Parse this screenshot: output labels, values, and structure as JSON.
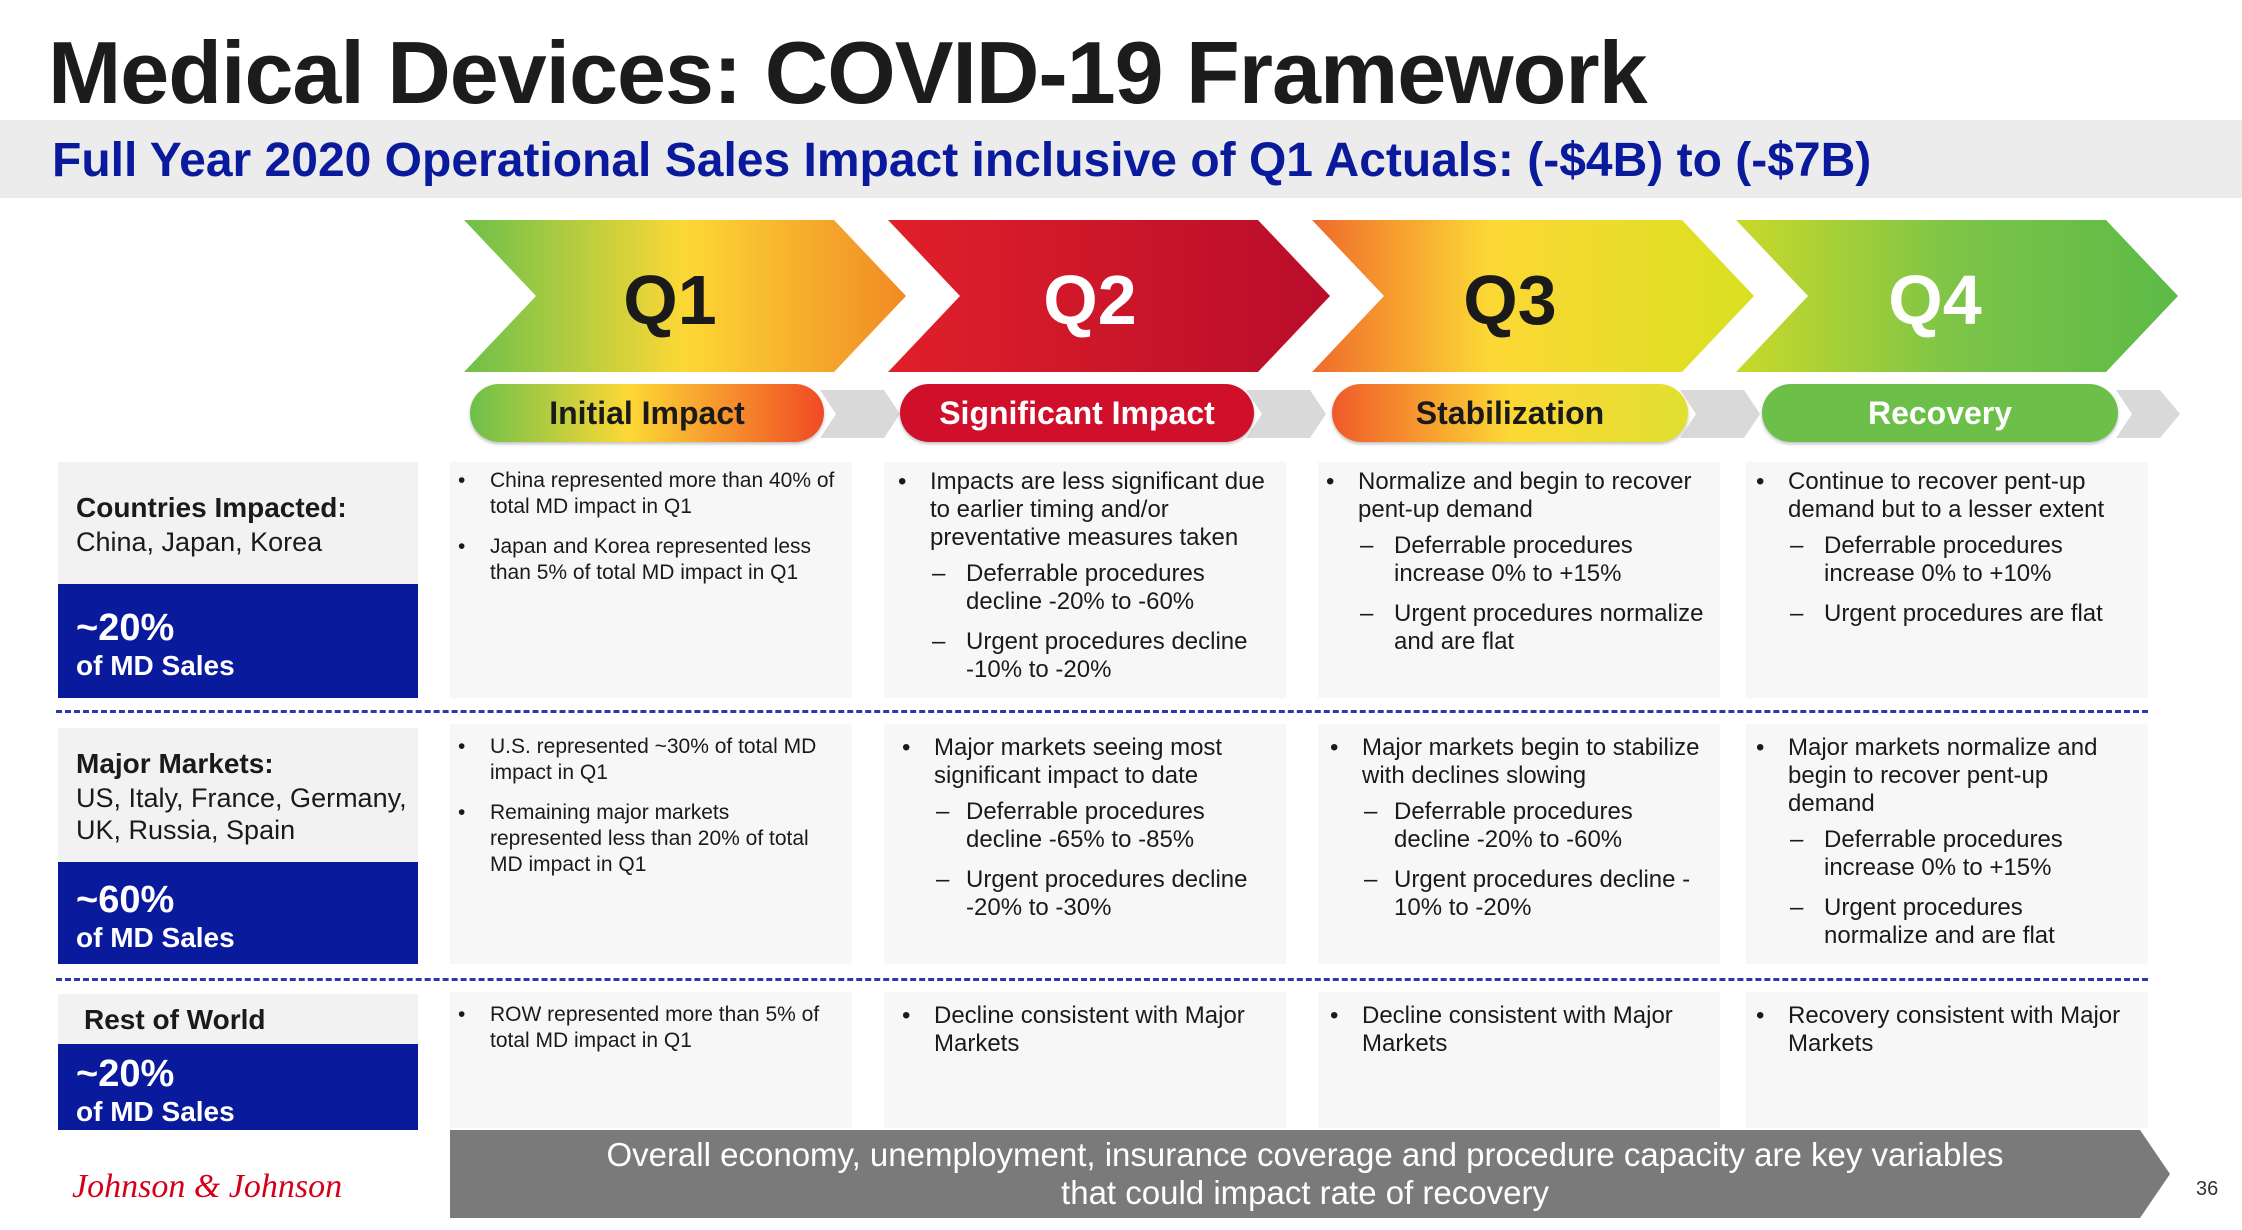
{
  "title": "Medical Devices: COVID-19 Framework",
  "subtitle": "Full Year 2020 Operational Sales Impact inclusive of Q1 Actuals: (-$4B) to (-$7B)",
  "quarters": [
    {
      "label": "Q1",
      "phase": "Initial Impact"
    },
    {
      "label": "Q2",
      "phase": "Significant Impact"
    },
    {
      "label": "Q3",
      "phase": "Stabilization"
    },
    {
      "label": "Q4",
      "phase": "Recovery"
    }
  ],
  "colors": {
    "brand_blue": "#0a1a9c",
    "red": "#c8102e",
    "green": "#6cc04a",
    "yellow": "#fdd835",
    "orange": "#f08a24",
    "footer_gray": "#7a7a7a",
    "jnj_red": "#d4001a"
  },
  "regions": [
    {
      "title": "Countries Impacted:",
      "sub_lines": [
        "China, Japan, Korea"
      ],
      "pct": "~20%",
      "pct_label": "of MD Sales",
      "q1": {
        "bullets": [
          {
            "text": "China represented more than 40% of total MD impact in Q1"
          },
          {
            "text": "Japan and Korea represented less than 5% of total MD impact in Q1"
          }
        ]
      },
      "q2": {
        "bullets": [
          {
            "text": "Impacts are less significant due to earlier timing and/or preventative measures taken",
            "subs": [
              "Deferrable procedures decline -20% to -60%",
              "Urgent procedures decline -10% to -20%"
            ]
          }
        ]
      },
      "q3": {
        "bullets": [
          {
            "text": "Normalize and begin to recover pent-up demand",
            "subs": [
              "Deferrable procedures increase 0% to +15%",
              "Urgent procedures normalize and are flat"
            ]
          }
        ]
      },
      "q4": {
        "bullets": [
          {
            "text": "Continue to recover pent-up demand but to a lesser extent",
            "subs": [
              "Deferrable procedures increase 0% to +10%",
              "Urgent procedures are flat"
            ]
          }
        ]
      }
    },
    {
      "title": "Major Markets:",
      "sub_lines": [
        "US, Italy, France, Germany,",
        "UK, Russia, Spain"
      ],
      "pct": "~60%",
      "pct_label": "of MD Sales",
      "q1": {
        "bullets": [
          {
            "text": "U.S. represented ~30% of total MD impact in Q1"
          },
          {
            "text": "Remaining major markets represented less than 20% of total MD impact in Q1"
          }
        ]
      },
      "q2": {
        "bullets": [
          {
            "text": "Major markets seeing most significant impact to date",
            "subs": [
              "Deferrable procedures decline -65% to -85%",
              "Urgent procedures decline -20% to -30%"
            ]
          }
        ]
      },
      "q3": {
        "bullets": [
          {
            "text": "Major markets begin to stabilize with declines slowing",
            "subs": [
              "Deferrable procedures decline -20% to -60%",
              "Urgent procedures decline - 10% to -20%"
            ]
          }
        ]
      },
      "q4": {
        "bullets": [
          {
            "text": "Major markets normalize and begin to recover pent-up demand",
            "subs": [
              "Deferrable procedures increase 0% to +15%",
              "Urgent procedures normalize and are flat"
            ]
          }
        ]
      }
    },
    {
      "title": "Rest of World",
      "sub_lines": [],
      "pct": "~20%",
      "pct_label": "of MD Sales",
      "q1": {
        "bullets": [
          {
            "text": "ROW represented more than 5% of total MD impact in Q1"
          }
        ]
      },
      "q2": {
        "bullets": [
          {
            "text": "Decline consistent with Major Markets"
          }
        ]
      },
      "q3": {
        "bullets": [
          {
            "text": "Decline consistent with Major Markets"
          }
        ]
      },
      "q4": {
        "bullets": [
          {
            "text": "Recovery consistent with Major Markets"
          }
        ]
      }
    }
  ],
  "footer": {
    "line1": "Overall economy, unemployment, insurance coverage and procedure capacity are key variables",
    "line2": "that could impact rate of recovery"
  },
  "logo_text": "Johnson & Johnson",
  "page_number": "36"
}
